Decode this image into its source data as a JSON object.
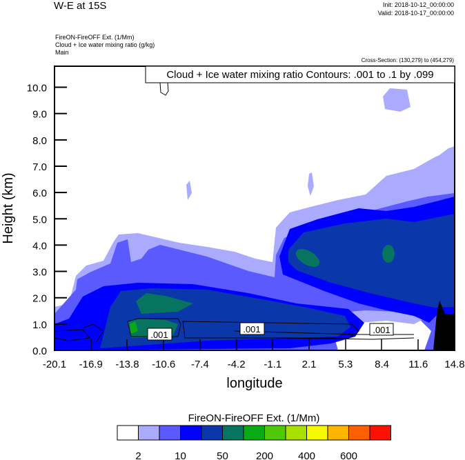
{
  "chart_data": {
    "type": "heatmap",
    "title": "W-E at 15S",
    "init": "Init: 2018-10-12_00:00:00",
    "valid": "Valid: 2018-10-17_00:00:00",
    "subtitle_lines": [
      "FireON-FireOFF Ext.   (1/Mm)",
      "Cloud + Ice water mixing ratio   (g/kg)",
      "Main"
    ],
    "cross_section": "Cross-Section: (130,279) to (454,279)",
    "contour_info": "Cloud + Ice water mixing ratio Contours: .001 to .1 by .099",
    "contour_labels": [
      ".001",
      ".001",
      ".001"
    ],
    "xlabel": "longitude",
    "ylabel": "Height (km)",
    "xticks": [
      "-20.1",
      "-16.9",
      "-13.8",
      "-10.6",
      "-7.4",
      "-4.2",
      "-1.1",
      "2.1",
      "5.3",
      "8.4",
      "11.6",
      "14.8"
    ],
    "xlim": [
      -20.1,
      14.8
    ],
    "yticks": [
      "0.0",
      "1.0",
      "2.0",
      "3.0",
      "4.0",
      "5.0",
      "6.0",
      "7.0",
      "8.0",
      "9.0",
      "10.0"
    ],
    "ylim": [
      0,
      10.8
    ],
    "colorbar": {
      "title": "FireON-FireOFF Ext.  (1/Mm)",
      "colors": [
        "#ffffff",
        "#aaaaff",
        "#5a5aff",
        "#0000ff",
        "#0a37aa",
        "#06745f",
        "#0aaa14",
        "#50c80a",
        "#a8e000",
        "#f5fa00",
        "#ffb400",
        "#ff5f00",
        "#ff1000"
      ],
      "labels": [
        "2",
        "10",
        "50",
        "200",
        "400",
        "600"
      ],
      "label_boundaries": [
        1,
        3,
        5,
        7,
        9,
        11
      ]
    }
  }
}
